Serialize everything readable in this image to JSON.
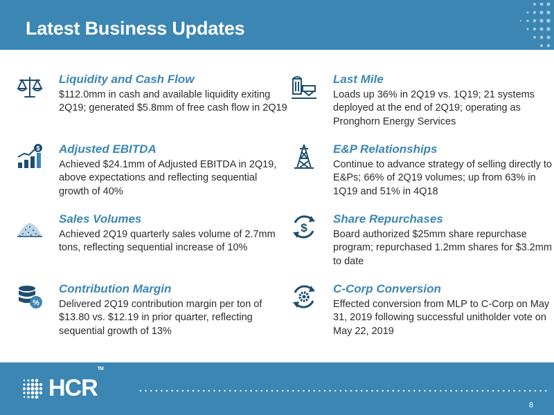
{
  "header": {
    "title": "Latest Business Updates"
  },
  "items": [
    {
      "title": "Liquidity and Cash Flow",
      "body": "$112.0mm in cash and available liquidity exiting 2Q19; generated $5.8mm of free cash flow in 2Q19",
      "icon": "scale-icon"
    },
    {
      "title": "Adjusted EBITDA",
      "body": "Achieved $24.1mm of Adjusted EBITDA in 2Q19, above expectations and reflecting sequential growth of 40%",
      "icon": "growth-chart-icon"
    },
    {
      "title": "Sales Volumes",
      "body": "Achieved 2Q19 quarterly sales volume of 2.7mm tons, reflecting sequential increase of 10%",
      "icon": "sand-pile-icon"
    },
    {
      "title": "Contribution Margin",
      "body": "Delivered 2Q19 contribution margin per ton of $13.80 vs. $12.19 in prior quarter, reflecting sequential growth of 13%",
      "icon": "database-percent-icon"
    },
    {
      "title": "Last Mile",
      "body": "Loads up 36% in 2Q19 vs. 1Q19; 21 systems deployed at the end of 2Q19; operating as Pronghorn Energy Services",
      "icon": "silo-icon"
    },
    {
      "title": "E&P Relationships",
      "body": "Continue to advance strategy of selling directly to E&Ps; 66% of 2Q19 volumes; up from 63% in 1Q19 and 51% in 4Q18",
      "icon": "oil-derrick-icon"
    },
    {
      "title": "Share Repurchases",
      "body": "Board authorized $25mm share repurchase program; repurchased 1.2mm shares for $3.2mm to date",
      "icon": "dollar-cycle-icon"
    },
    {
      "title": "C-Corp Conversion",
      "body": "Effected conversion from MLP to C-Corp on May 31, 2019 following successful unitholder vote on May 22, 2019",
      "icon": "gear-cycle-icon"
    }
  ],
  "footer": {
    "logo_text": "HCR",
    "logo_tm": "TM",
    "page_number": "8"
  },
  "colors": {
    "brand_blue": "#3b86b3",
    "dark_icon": "#1f4e6e",
    "text": "#2b2b2b"
  }
}
